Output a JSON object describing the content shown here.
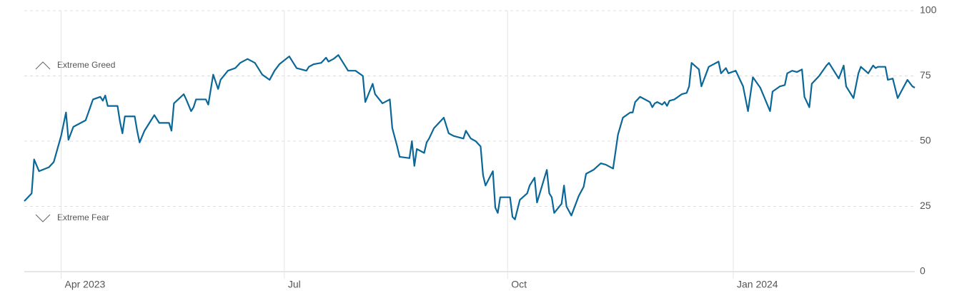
{
  "chart_data": {
    "type": "line",
    "annotations": [
      "Extreme Greed",
      "Extreme Fear"
    ],
    "x": [
      0,
      3,
      4,
      6,
      10,
      12,
      15,
      17,
      18,
      20,
      25,
      28,
      31,
      32,
      33,
      34,
      38,
      39,
      40,
      41,
      45,
      46,
      47,
      49,
      51,
      53,
      55,
      59,
      60,
      61,
      65,
      66,
      68,
      69,
      70,
      74,
      75,
      77,
      79,
      80,
      83,
      86,
      88,
      91,
      94,
      97,
      100,
      102,
      104,
      108,
      110,
      111,
      115,
      116,
      118,
      121,
      123,
      124,
      126,
      128,
      130,
      132,
      135,
      138,
      139,
      142,
      143,
      146,
      149,
      150,
      152,
      153,
      157,
      158,
      159,
      160,
      163,
      164,
      165,
      167,
      171,
      173,
      175,
      177,
      179,
      180,
      182,
      184,
      186,
      187,
      188,
      191,
      192,
      193,
      194,
      198,
      199,
      200,
      202,
      205,
      206,
      208,
      209,
      213,
      214,
      215,
      216,
      219,
      220,
      221,
      223,
      226,
      228,
      229,
      232,
      235,
      237,
      240,
      242,
      244,
      247,
      248,
      249,
      251,
      255,
      256,
      257,
      258,
      260,
      261,
      262,
      263,
      265,
      268,
      270,
      271,
      272,
      275,
      276,
      279,
      283,
      284,
      286,
      287,
      290,
      293,
      295,
      297,
      300,
      304,
      305,
      308,
      310,
      311,
      313,
      315,
      317,
      318,
      320,
      321,
      324,
      327,
      328,
      332,
      334,
      335,
      338,
      340,
      341,
      344,
      346,
      347,
      348,
      351,
      352,
      354,
      356,
      360,
      362,
      363
    ],
    "series": [
      {
        "color": "#0b6797",
        "values": [
          27,
          30,
          43,
          38.5,
          40,
          42,
          52,
          61,
          50.5,
          55.5,
          58,
          66,
          67,
          65.5,
          67.5,
          63.5,
          63.5,
          57.5,
          53,
          59.5,
          59.5,
          54,
          49.5,
          54,
          57,
          60,
          57,
          57,
          54,
          64.5,
          68,
          66,
          61.5,
          63,
          66,
          66,
          64,
          75.5,
          70,
          73.5,
          77,
          78,
          80,
          81.5,
          80,
          75.5,
          73.5,
          77,
          79.5,
          82.5,
          79.5,
          78,
          77,
          78.5,
          79.5,
          80,
          82,
          80.5,
          81.5,
          83,
          80,
          77,
          77,
          75,
          65,
          72,
          68,
          64.5,
          66,
          55,
          48,
          44,
          43.5,
          50,
          40.5,
          47,
          45.5,
          49.5,
          51,
          55,
          59,
          53,
          52,
          51.5,
          51,
          54,
          51,
          50,
          48,
          37,
          33,
          38.5,
          24.5,
          22.5,
          28.5,
          28.5,
          21,
          20,
          27.5,
          30,
          33,
          36,
          26.5,
          39,
          30,
          28.5,
          22.5,
          26,
          33,
          25,
          21.5,
          29,
          32.5,
          37.5,
          39,
          41.5,
          41,
          39.5,
          52.5,
          59,
          61,
          61,
          65,
          67,
          65,
          63,
          64.5,
          65,
          64,
          65,
          63.5,
          65.5,
          66,
          68,
          68.5,
          71,
          80,
          77.5,
          71,
          78.5,
          80.5,
          76,
          78,
          76,
          77,
          71,
          61.5,
          74.5,
          70.5,
          61.5,
          69,
          71,
          71.5,
          76,
          77,
          76.5,
          77.5,
          67,
          63,
          72,
          75,
          79,
          80,
          74,
          79,
          71,
          66.5,
          76,
          78.5,
          76,
          79,
          78,
          78.5,
          78.5,
          73.5,
          74,
          66.5,
          73.5,
          71,
          70.5
        ]
      }
    ],
    "xlim": [
      0,
      363
    ],
    "xticks": [
      {
        "value": 15,
        "label": "Apr 2023"
      },
      {
        "value": 106,
        "label": "Jul"
      },
      {
        "value": 197,
        "label": "Oct"
      },
      {
        "value": 289,
        "label": "Jan 2024"
      }
    ],
    "ylim": [
      0,
      100
    ],
    "yticks": [
      0,
      25,
      50,
      75,
      100
    ],
    "grid": true
  }
}
